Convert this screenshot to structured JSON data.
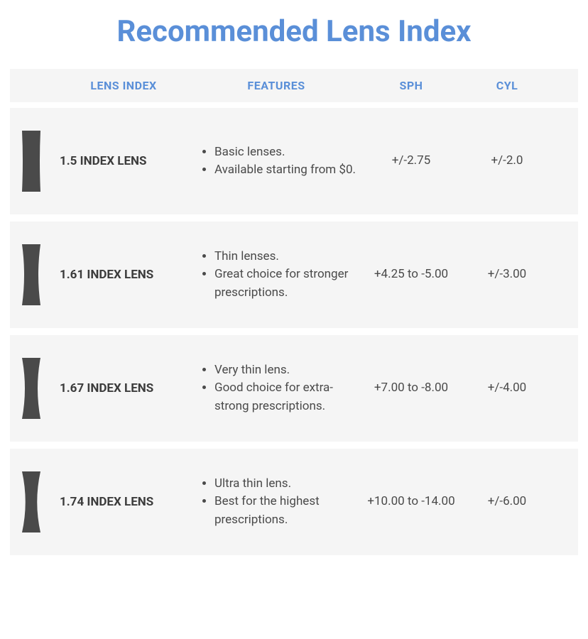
{
  "title": "Recommended Lens Index",
  "title_color": "#5a8fd8",
  "header_color": "#5a8fd8",
  "row_bg": "#f5f5f5",
  "text_color": "#4a4a4a",
  "icon_color": "#4a4a4a",
  "columns": {
    "lens_index": "LENS INDEX",
    "features": "FEATURES",
    "sph": "SPH",
    "cyl": "CYL"
  },
  "rows": [
    {
      "name": "1.5 INDEX LENS",
      "features": [
        "Basic lenses.",
        "Available starting from $0."
      ],
      "sph": "+/-2.75",
      "cyl": "+/-2.0",
      "lens_thickness": 22
    },
    {
      "name": "1.61 INDEX LENS",
      "features": [
        "Thin lenses.",
        "Great choice for stronger prescriptions."
      ],
      "sph": "+4.25 to -5.00",
      "cyl": "+/-3.00",
      "lens_thickness": 14
    },
    {
      "name": "1.67 INDEX LENS",
      "features": [
        "Very thin lens.",
        "Good choice for extra-strong prescriptions."
      ],
      "sph": "+7.00 to -8.00",
      "cyl": "+/-4.00",
      "lens_thickness": 10
    },
    {
      "name": "1.74 INDEX LENS",
      "features": [
        "Ultra thin lens.",
        "Best for the highest prescriptions."
      ],
      "sph": "+10.00 to -14.00",
      "cyl": "+/-6.00",
      "lens_thickness": 7
    }
  ],
  "lens_icon": {
    "height": 90,
    "width": 50
  }
}
